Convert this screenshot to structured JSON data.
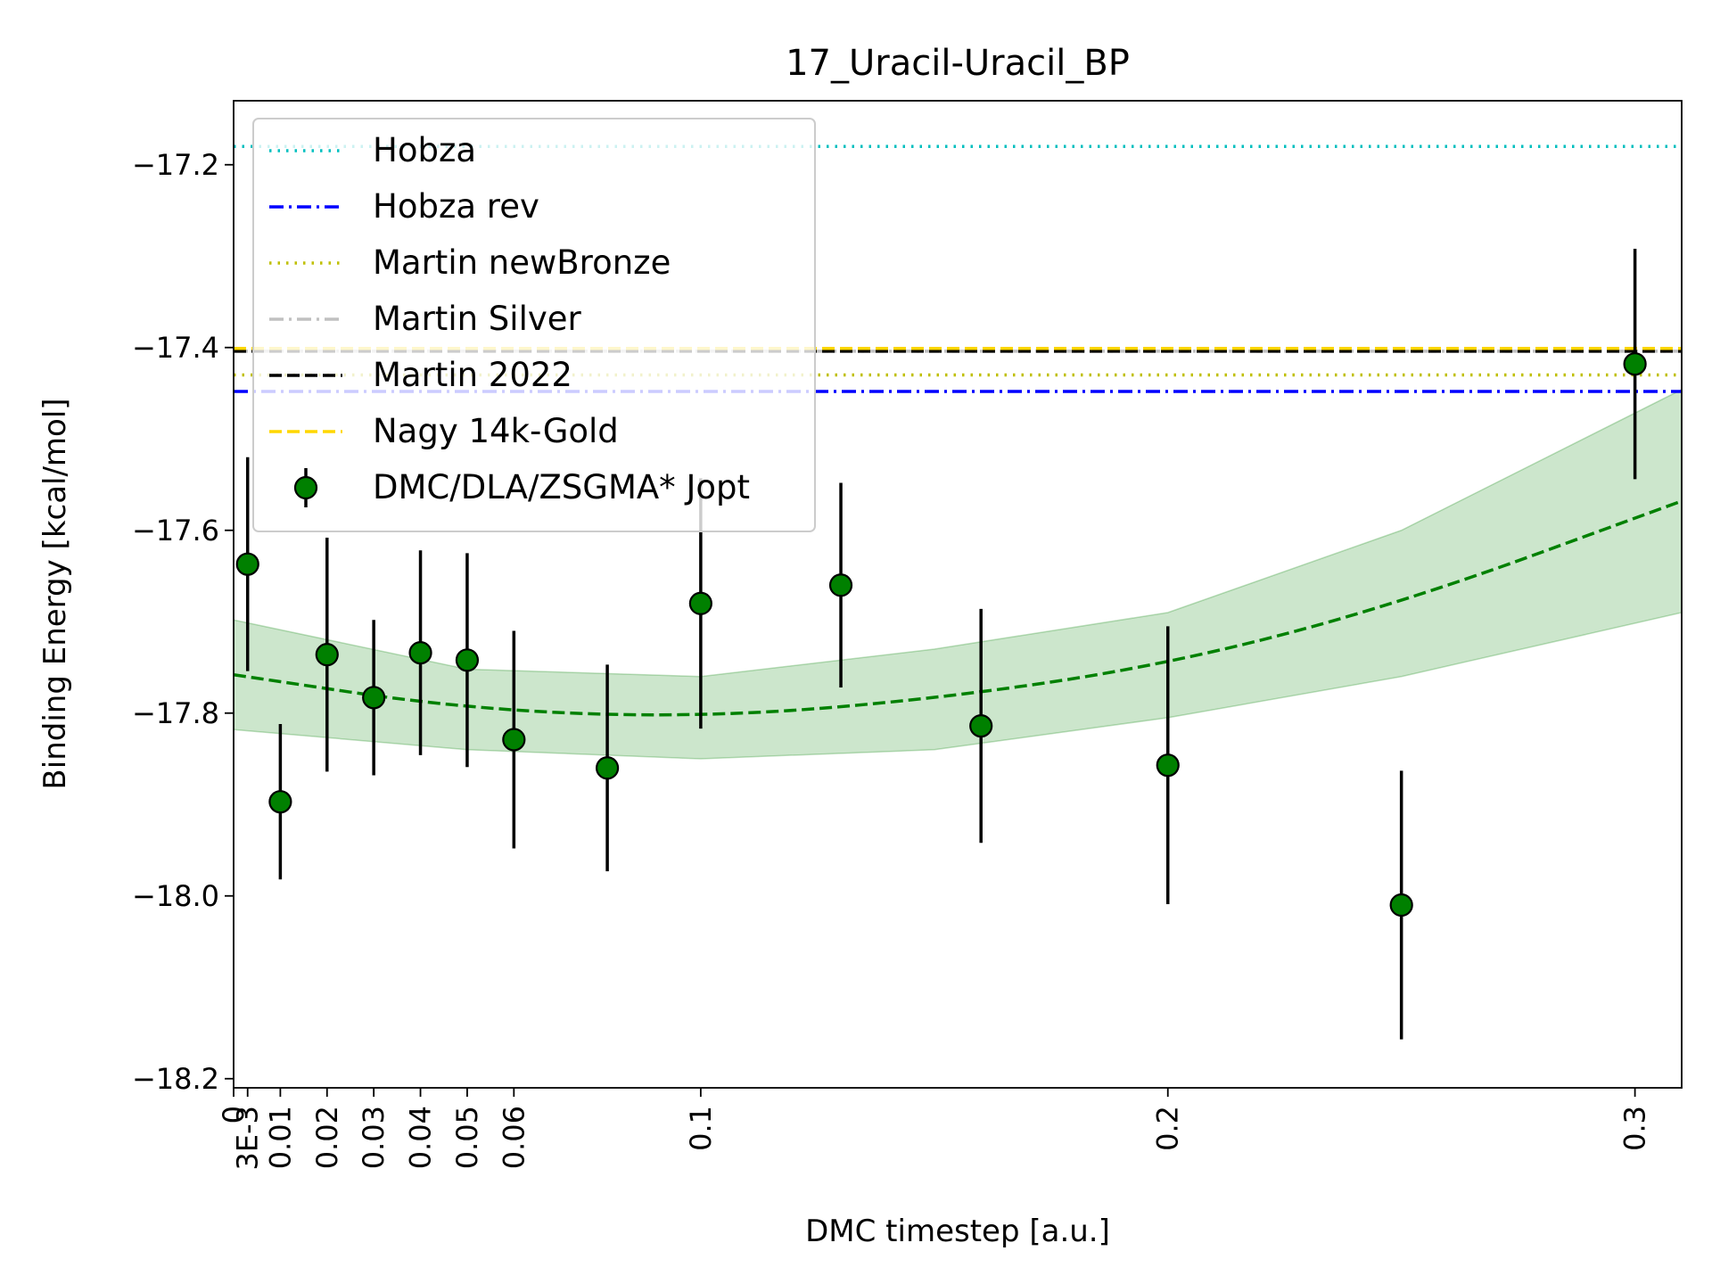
{
  "chart_data": {
    "type": "scatter",
    "title": "17_Uracil-Uracil_BP",
    "xlabel": "DMC timestep [a.u.]",
    "ylabel": "Binding Energy [kcal/mol]",
    "xlim": [
      0,
      0.31
    ],
    "ylim": [
      -18.21,
      -17.13
    ],
    "xticks": [
      {
        "value": 0,
        "label": "0"
      },
      {
        "value": 0.003,
        "label": "3E-3"
      },
      {
        "value": 0.01,
        "label": "0.01"
      },
      {
        "value": 0.02,
        "label": "0.02"
      },
      {
        "value": 0.03,
        "label": "0.03"
      },
      {
        "value": 0.04,
        "label": "0.04"
      },
      {
        "value": 0.05,
        "label": "0.05"
      },
      {
        "value": 0.06,
        "label": "0.06"
      },
      {
        "value": 0.1,
        "label": "0.1"
      },
      {
        "value": 0.2,
        "label": "0.2"
      },
      {
        "value": 0.3,
        "label": "0.3"
      }
    ],
    "yticks": [
      {
        "value": -17.2,
        "label": "−17.2"
      },
      {
        "value": -17.4,
        "label": "−17.4"
      },
      {
        "value": -17.6,
        "label": "−17.6"
      },
      {
        "value": -17.8,
        "label": "−17.8"
      },
      {
        "value": -18.0,
        "label": "−18.0"
      },
      {
        "value": -18.2,
        "label": "−18.2"
      }
    ],
    "reference_lines": [
      {
        "name": "Hobza",
        "y": -17.18,
        "color": "#00bfbf",
        "style": "dotted"
      },
      {
        "name": "Hobza rev",
        "y": -17.448,
        "color": "#0000ff",
        "style": "dashdot"
      },
      {
        "name": "Martin newBronze",
        "y": -17.43,
        "color": "#bfbf00",
        "style": "dotted"
      },
      {
        "name": "Martin Silver",
        "y": -17.404,
        "color": "#c0c0c0",
        "style": "dashdot"
      },
      {
        "name": "Martin 2022",
        "y": -17.404,
        "color": "#000000",
        "style": "dashed"
      },
      {
        "name": "Nagy 14k-Gold",
        "y": -17.401,
        "color": "#ffd700",
        "style": "dashed"
      }
    ],
    "series": [
      {
        "name": "DMC/DLA/ZSGMA* Jopt",
        "marker_color": "#008000",
        "points": [
          {
            "x": 0.003,
            "y": -17.637,
            "err": 0.117
          },
          {
            "x": 0.01,
            "y": -17.897,
            "err": 0.085
          },
          {
            "x": 0.02,
            "y": -17.736,
            "err": 0.128
          },
          {
            "x": 0.03,
            "y": -17.783,
            "err": 0.085
          },
          {
            "x": 0.04,
            "y": -17.734,
            "err": 0.112
          },
          {
            "x": 0.05,
            "y": -17.742,
            "err": 0.117
          },
          {
            "x": 0.06,
            "y": -17.829,
            "err": 0.119
          },
          {
            "x": 0.08,
            "y": -17.86,
            "err": 0.113
          },
          {
            "x": 0.1,
            "y": -17.68,
            "err": 0.137
          },
          {
            "x": 0.13,
            "y": -17.66,
            "err": 0.112
          },
          {
            "x": 0.16,
            "y": -17.814,
            "err": 0.128
          },
          {
            "x": 0.2,
            "y": -17.857,
            "err": 0.152
          },
          {
            "x": 0.25,
            "y": -18.01,
            "err": 0.147
          },
          {
            "x": 0.3,
            "y": -17.418,
            "err": 0.126
          }
        ]
      }
    ],
    "fit": {
      "type": "quadratic",
      "color": "#008000",
      "band_color": "#008000",
      "x": [
        0,
        0.05,
        0.1,
        0.15,
        0.2,
        0.25,
        0.31
      ],
      "y": [
        -17.758,
        -17.796,
        -17.805,
        -17.785,
        -17.747,
        -17.68,
        -17.568
      ],
      "lower": [
        -17.818,
        -17.84,
        -17.85,
        -17.84,
        -17.805,
        -17.76,
        -17.69
      ],
      "upper": [
        -17.698,
        -17.752,
        -17.76,
        -17.73,
        -17.69,
        -17.6,
        -17.446
      ]
    },
    "legend": {
      "placement": "top-left"
    },
    "grid": false
  }
}
